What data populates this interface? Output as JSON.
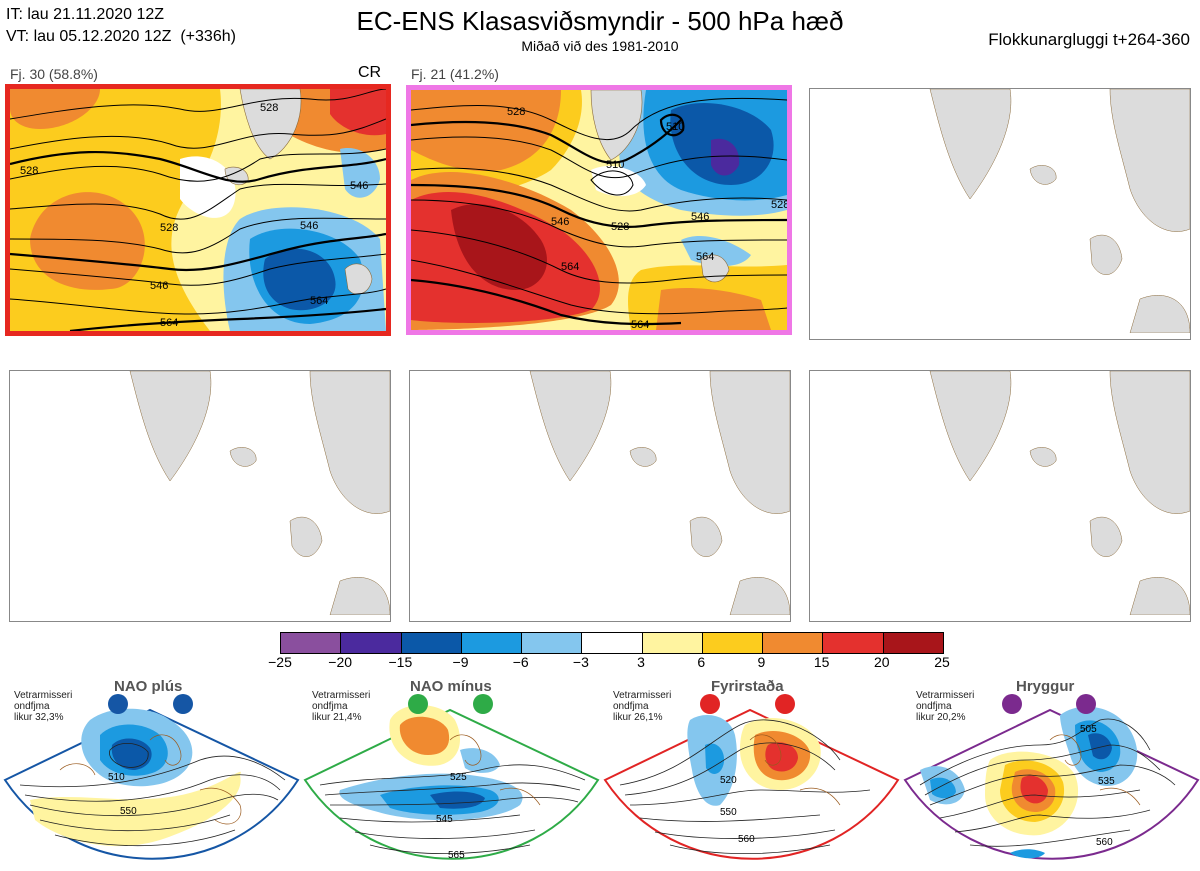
{
  "header": {
    "it_line": "IT: lau 21.11.2020 12Z",
    "vt_line": "VT: lau 05.12.2020 12Z  (+336h)",
    "title": "EC-ENS Klasasviðsmyndir - 500 hPa hæð",
    "subtitle": "Miðað við des 1981-2010",
    "window": "Flokkunargluggi t+264-360"
  },
  "panels": [
    {
      "label": "Fj. 30 (58.8%)",
      "tag": "CR",
      "contours": [
        "528",
        "528",
        "528",
        "546",
        "546",
        "546",
        "564",
        "564"
      ]
    },
    {
      "label": "Fj. 21 (41.2%)",
      "tag": "",
      "contours": [
        "510",
        "528",
        "528",
        "528",
        "546",
        "546",
        "564",
        "564"
      ]
    }
  ],
  "colorbar": {
    "colors": [
      "#8a4f9e",
      "#4b2a9e",
      "#0b58a8",
      "#1c9ae0",
      "#84c6ee",
      "#ffffff",
      "#fff4a0",
      "#fccc1e",
      "#f08a30",
      "#e4312e",
      "#a8151a"
    ],
    "ticks": [
      "−25",
      "−20",
      "−15",
      "−9",
      "−6",
      "−3",
      "3",
      "6",
      "9",
      "15",
      "20",
      "25"
    ]
  },
  "regimes": [
    {
      "name": "NAO plús",
      "note": "Vetrarmisseri\nondfjma\nlikur 32,3%",
      "color": "#1556a5",
      "contours": [
        "510",
        "550"
      ]
    },
    {
      "name": "NAO mínus",
      "note": "Vetrarmisseri\nondfjma\nlikur 21,4%",
      "color": "#2eab47",
      "contours": [
        "525",
        "545",
        "565"
      ]
    },
    {
      "name": "Fyrirstaða",
      "note": "Vetrarmisseri\nondfjma\nlikur 26,1%",
      "color": "#e12424",
      "contours": [
        "520",
        "550",
        "560"
      ]
    },
    {
      "name": "Hryggur",
      "note": "Vetrarmisseri\nondfjma\nlikur 20,2%",
      "color": "#7b2a8e",
      "contours": [
        "505",
        "535",
        "560"
      ]
    }
  ]
}
